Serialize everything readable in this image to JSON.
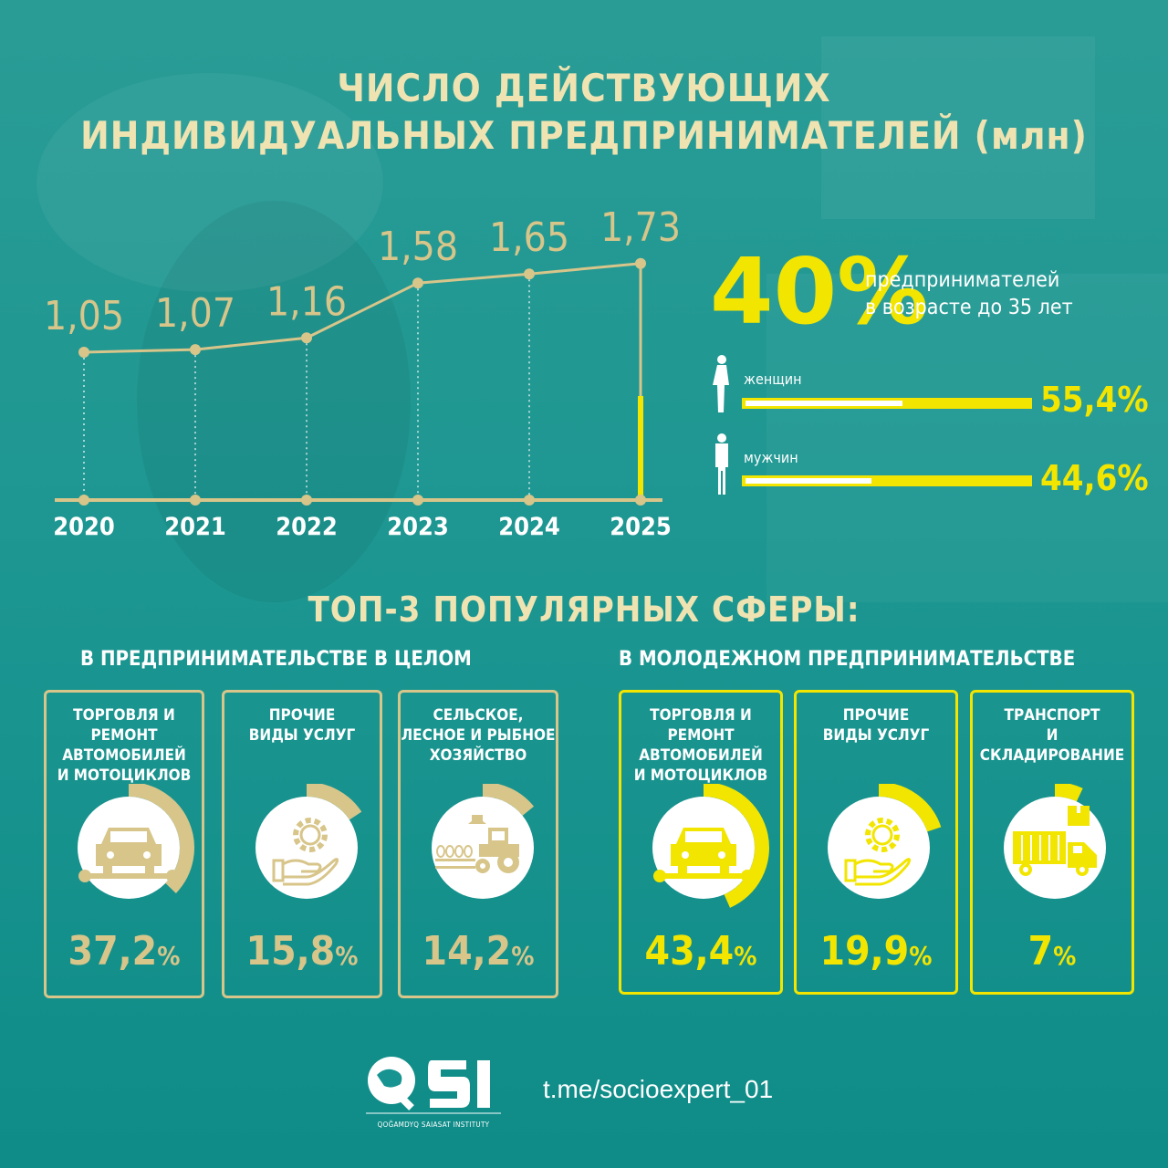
{
  "title_line1": "ЧИСЛО ДЕЙСТВУЮЩИХ",
  "title_line2": "ИНДИВИДУАЛЬНЫХ ПРЕДПРИНИМАТЕЛЕЙ (млн)",
  "colors": {
    "background": "#179491",
    "beige": "#d7c58a",
    "yellow": "#f2e500",
    "white": "#ffffff"
  },
  "chart_data": {
    "type": "line",
    "title": "ЧИСЛО ДЕЙСТВУЮЩИХ ИНДИВИДУАЛЬНЫХ ПРЕДПРИНИМАТЕЛЕЙ (млн)",
    "categories": [
      "2020",
      "2021",
      "2022",
      "2023",
      "2024",
      "2025"
    ],
    "values": [
      1.05,
      1.07,
      1.16,
      1.58,
      1.65,
      1.73
    ],
    "value_labels": [
      "1,05",
      "1,07",
      "1,16",
      "1,58",
      "1,65",
      "1,73"
    ],
    "xlabel": "",
    "ylabel": "",
    "grid": false
  },
  "youth": {
    "percent": "40%",
    "text_line1": "предпринимателей",
    "text_line2": "в возрасте до 35 лет",
    "women": {
      "label": "женщин",
      "value": "55,4%",
      "fraction": 0.554,
      "icon": "woman-icon"
    },
    "men": {
      "label": "мужчин",
      "value": "44,6%",
      "fraction": 0.446,
      "icon": "man-icon"
    }
  },
  "top3": {
    "heading": "ТОП-3 ПОПУЛЯРНЫХ СФЕРЫ:",
    "general": {
      "heading": "В ПРЕДПРИНИМАТЕЛЬСТВЕ В ЦЕЛОМ",
      "items": [
        {
          "name": "ТОРГОВЛЯ И РЕМОНТ\nАВТОМОБИЛЕЙ\nИ МОТОЦИКЛОВ",
          "value": "37,2",
          "unit": "%",
          "fraction": 0.372,
          "icon": "car-repair-icon"
        },
        {
          "name": "ПРОЧИЕ\nВИДЫ УСЛУГ",
          "value": "15,8",
          "unit": "%",
          "fraction": 0.158,
          "icon": "gear-hand-icon"
        },
        {
          "name": "СЕЛЬСКОЕ,\nЛЕСНОЕ И РЫБНОЕ\nХОЗЯЙСТВО",
          "value": "14,2",
          "unit": "%",
          "fraction": 0.142,
          "icon": "tractor-icon"
        }
      ]
    },
    "youth": {
      "heading": "В МОЛОДЕЖНОМ ПРЕДПРИНИМАТЕЛЬСТВЕ",
      "items": [
        {
          "name": "ТОРГОВЛЯ И РЕМОНТ\nАВТОМОБИЛЕЙ\nИ МОТОЦИКЛОВ",
          "value": "43,4",
          "unit": "%",
          "fraction": 0.434,
          "icon": "car-repair-icon"
        },
        {
          "name": "ПРОЧИЕ\nВИДЫ УСЛУГ",
          "value": "19,9",
          "unit": "%",
          "fraction": 0.199,
          "icon": "gear-hand-icon"
        },
        {
          "name": "ТРАНСПОРТ\nИ СКЛАДИРОВАНИЕ",
          "value": "7",
          "unit": "%",
          "fraction": 0.07,
          "icon": "truck-icon"
        }
      ]
    }
  },
  "footer": {
    "logo_text": "QSI",
    "logo_subtitle": "QOĞAMDYQ SAIASAT INSTITUTY",
    "link": "t.me/socioexpert_01"
  }
}
